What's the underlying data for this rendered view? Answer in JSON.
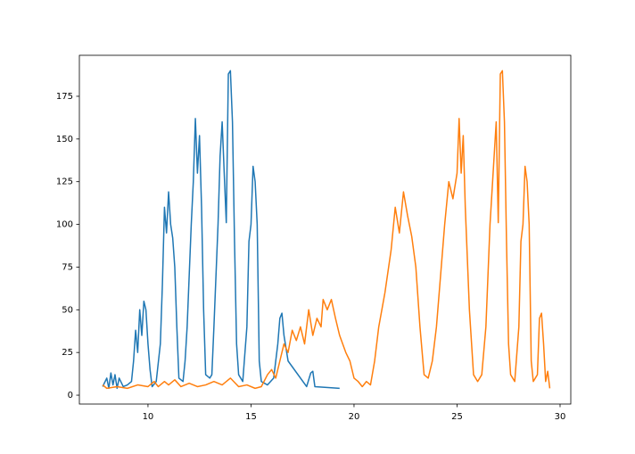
{
  "chart_data": {
    "type": "line",
    "series": [
      {
        "color": "#1f77b4",
        "x": [
          7.8,
          8.0,
          8.1,
          8.2,
          8.3,
          8.4,
          8.5,
          8.6,
          8.8,
          9.0,
          9.2,
          9.3,
          9.4,
          9.5,
          9.6,
          9.7,
          9.8,
          9.9,
          10.0,
          10.1,
          10.2,
          10.4,
          10.6,
          10.7,
          10.8,
          10.9,
          11.0,
          11.1,
          11.2,
          11.3,
          11.4,
          11.5,
          11.7,
          11.8,
          11.9,
          12.0,
          12.1,
          12.2,
          12.3,
          12.4,
          12.5,
          12.6,
          12.7,
          12.8,
          13.0,
          13.1,
          13.2,
          13.4,
          13.5,
          13.6,
          13.7,
          13.8,
          13.9,
          14.0,
          14.1,
          14.2,
          14.3,
          14.4,
          14.6,
          14.8,
          14.9,
          15.0,
          15.1,
          15.2,
          15.3,
          15.4,
          15.5,
          15.8,
          16.1,
          16.3,
          16.4,
          16.5,
          16.6,
          16.8,
          17.7,
          17.9,
          18.0,
          18.1,
          19.3
        ],
        "values": [
          5,
          10,
          4,
          13,
          6,
          12,
          4,
          10,
          5,
          6,
          8,
          20,
          38,
          25,
          50,
          35,
          55,
          50,
          30,
          15,
          5,
          8,
          30,
          65,
          110,
          95,
          119,
          100,
          92,
          75,
          40,
          10,
          8,
          20,
          40,
          70,
          100,
          125,
          162,
          130,
          152,
          110,
          50,
          12,
          10,
          12,
          40,
          100,
          140,
          160,
          130,
          101,
          188,
          190,
          160,
          90,
          30,
          12,
          8,
          40,
          90,
          100,
          134,
          125,
          100,
          20,
          8,
          6,
          10,
          30,
          45,
          48,
          35,
          20,
          5,
          13,
          14,
          5,
          4
        ]
      },
      {
        "color": "#ff7f0e",
        "x": [
          7.8,
          8.0,
          8.5,
          9.0,
          9.5,
          10.0,
          10.3,
          10.5,
          10.8,
          11.0,
          11.3,
          11.6,
          12.0,
          12.4,
          12.8,
          13.2,
          13.6,
          14.0,
          14.4,
          14.8,
          15.2,
          15.5,
          15.8,
          16.0,
          16.2,
          16.4,
          16.6,
          16.8,
          17.0,
          17.2,
          17.4,
          17.6,
          17.8,
          18.0,
          18.2,
          18.4,
          18.5,
          18.7,
          18.9,
          19.1,
          19.3,
          19.6,
          19.8,
          20.0,
          20.2,
          20.4,
          20.6,
          20.8,
          21.0,
          21.2,
          21.5,
          21.8,
          22.0,
          22.2,
          22.4,
          22.6,
          22.8,
          23.0,
          23.2,
          23.4,
          23.6,
          23.8,
          24.0,
          24.2,
          24.4,
          24.6,
          24.8,
          25.0,
          25.1,
          25.2,
          25.3,
          25.4,
          25.6,
          25.8,
          26.0,
          26.2,
          26.4,
          26.6,
          26.8,
          26.9,
          27.0,
          27.1,
          27.2,
          27.3,
          27.4,
          27.5,
          27.6,
          27.8,
          28.0,
          28.1,
          28.2,
          28.3,
          28.4,
          28.5,
          28.6,
          28.7,
          28.9,
          29.0,
          29.1,
          29.2,
          29.3,
          29.4,
          29.5
        ],
        "values": [
          6,
          4,
          5,
          4,
          6,
          5,
          8,
          5,
          8,
          6,
          9,
          5,
          7,
          5,
          6,
          8,
          6,
          10,
          5,
          6,
          4,
          5,
          12,
          15,
          10,
          20,
          30,
          25,
          38,
          32,
          40,
          30,
          50,
          35,
          45,
          40,
          56,
          50,
          56,
          45,
          35,
          25,
          20,
          10,
          8,
          5,
          8,
          6,
          20,
          40,
          60,
          85,
          110,
          95,
          119,
          105,
          93,
          75,
          40,
          12,
          10,
          20,
          40,
          70,
          100,
          125,
          115,
          130,
          162,
          130,
          152,
          110,
          50,
          12,
          8,
          12,
          40,
          100,
          140,
          160,
          101,
          188,
          190,
          160,
          90,
          30,
          12,
          8,
          40,
          90,
          100,
          134,
          125,
          100,
          20,
          8,
          12,
          45,
          48,
          30,
          8,
          14,
          4
        ]
      }
    ],
    "xlim": [
      6.67,
      30.52
    ],
    "xticks": [
      10,
      15,
      20,
      25,
      30
    ],
    "ylim": [
      -5.2,
      199.0
    ],
    "yticks": [
      0,
      25,
      50,
      75,
      100,
      125,
      150,
      175
    ],
    "grid": false
  }
}
